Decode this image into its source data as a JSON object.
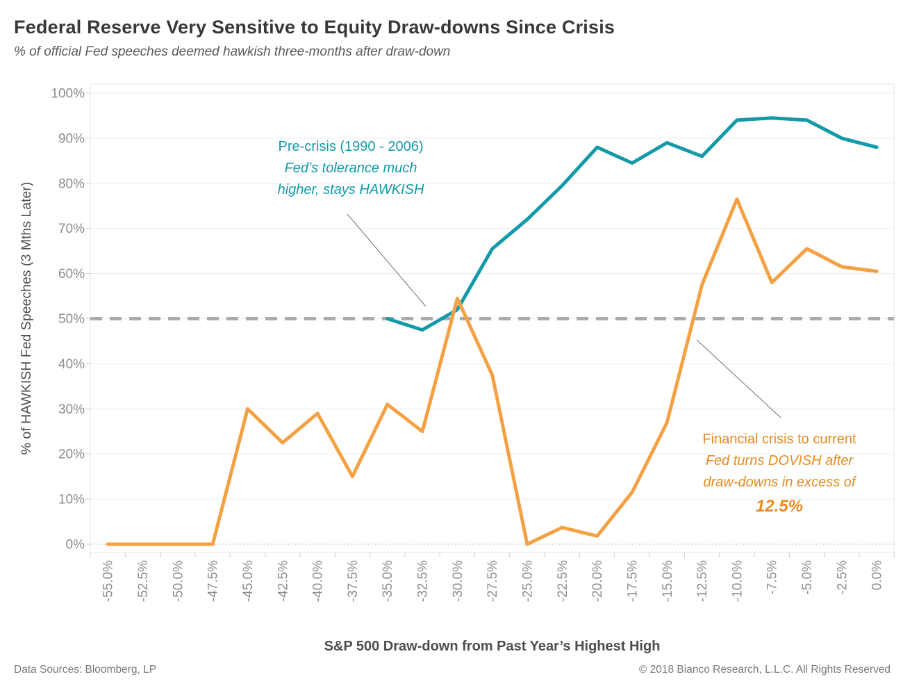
{
  "title": "Federal Reserve Very Sensitive to Equity Draw-downs Since Crisis",
  "subtitle": "% of official Fed speeches deemed hawkish three-months after draw-down",
  "footer": {
    "left": "Data Sources: Bloomberg, LP",
    "right": "© 2018 Bianco Research, L.L.C. All Rights Reserved"
  },
  "chart_data": {
    "type": "line",
    "title": "Federal Reserve Very Sensitive to Equity Draw-downs Since Crisis",
    "subtitle": "% of official Fed speeches deemed hawkish three-months after draw-down",
    "xlabel": "S&P 500 Draw-down from Past Year’s Highest High",
    "ylabel": "% of HAWKISH Fed Speeches (3 Mths Later)",
    "ylim": [
      0,
      100
    ],
    "yticks": [
      0,
      10,
      20,
      30,
      40,
      50,
      60,
      70,
      80,
      90,
      100
    ],
    "ytick_labels": [
      "0%",
      "10%",
      "20%",
      "30%",
      "40%",
      "50%",
      "60%",
      "70%",
      "80%",
      "90%",
      "100%"
    ],
    "grid": "horizontal",
    "legend_position": "none",
    "categories": [
      "-55.0%",
      "-52.5%",
      "-50.0%",
      "-47.5%",
      "-45.0%",
      "-42.5%",
      "-40.0%",
      "-37.5%",
      "-35.0%",
      "-32.5%",
      "-30.0%",
      "-27.5%",
      "-25.0%",
      "-22.5%",
      "-20.0%",
      "-17.5%",
      "-15.0%",
      "-12.5%",
      "-10.0%",
      "-7.5%",
      "-5.0%",
      "-2.5%",
      "0.0%"
    ],
    "reference_lines": [
      {
        "value": 50,
        "style": "dashed",
        "color": "#ababab"
      },
      {
        "value": 0,
        "style": "dotted",
        "color": "#c8c8c8"
      }
    ],
    "series": [
      {
        "name": "Pre-crisis (1990 - 2006)",
        "color": "#129aa8",
        "values": [
          null,
          null,
          null,
          null,
          null,
          null,
          null,
          null,
          50,
          47.5,
          52,
          65.5,
          72,
          79.5,
          88,
          84.5,
          89,
          86,
          94,
          94.5,
          94,
          90,
          88
        ]
      },
      {
        "name": "Financial crisis to current",
        "color": "#f4a144",
        "values": [
          0,
          0,
          0,
          0,
          30,
          22.5,
          29,
          15,
          31,
          25,
          54.5,
          37.5,
          0,
          3.7,
          1.8,
          11.5,
          27,
          57.5,
          76.5,
          58,
          65.5,
          61.5,
          60.5
        ]
      }
    ],
    "annotations": [
      {
        "color": "#129aa8",
        "lines": [
          {
            "text": "Pre-crisis (1990 - 2006)",
            "style": "normal"
          },
          {
            "text": "Fed’s tolerance much",
            "style": "italic"
          },
          {
            "text": "higher, stays HAWKISH",
            "style": "italic"
          }
        ]
      },
      {
        "color": "#e88a1f",
        "lines": [
          {
            "text": "Financial crisis to current",
            "style": "normal"
          },
          {
            "text": "Fed turns DOVISH after",
            "style": "italic"
          },
          {
            "text": "draw-downs in excess of",
            "style": "italic"
          },
          {
            "text": "12.5%",
            "style": "bold-italic"
          }
        ]
      }
    ]
  }
}
